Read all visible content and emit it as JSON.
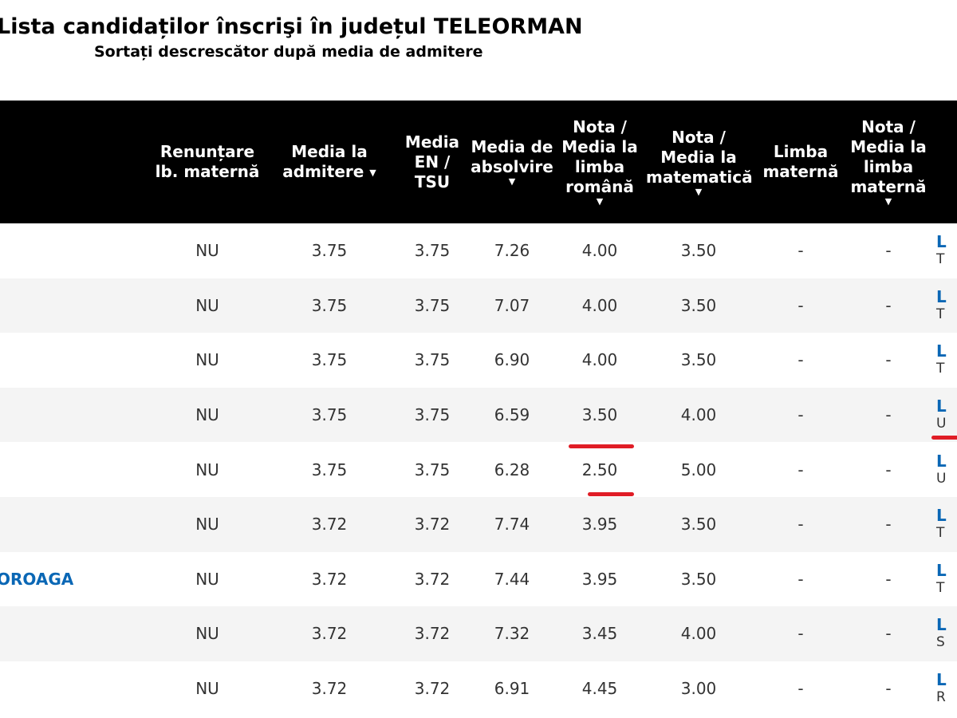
{
  "page": {
    "title": "Lista candidaților înscrişi în județul TELEORMAN",
    "subtitle": "Sortați descrescător după media de admitere"
  },
  "table": {
    "headers": {
      "renuntare": "Renunțare lb. maternă",
      "media_admitere": "Media la admitere",
      "media_en": "Media EN / TSU",
      "media_absolvire": "Media de absolvire",
      "nota_romana": "Nota / Media la limba română",
      "nota_matematica": "Nota / Media la matematică",
      "limba_materna": "Limba maternă",
      "nota_limba_materna": "Nota / Media la limba maternă",
      "sort_arrow": "▼"
    },
    "rows": [
      {
        "name": "",
        "renuntare": "NU",
        "media_admitere": "3.75",
        "media_en": "3.75",
        "media_absolvire": "7.26",
        "nota_romana": "4.00",
        "nota_matematica": "3.50",
        "limba_materna": "-",
        "nota_limba_materna": "-",
        "school_initial": "L",
        "school_loc": "T"
      },
      {
        "name": "",
        "renuntare": "NU",
        "media_admitere": "3.75",
        "media_en": "3.75",
        "media_absolvire": "7.07",
        "nota_romana": "4.00",
        "nota_matematica": "3.50",
        "limba_materna": "-",
        "nota_limba_materna": "-",
        "school_initial": "L",
        "school_loc": "T"
      },
      {
        "name": "",
        "renuntare": "NU",
        "media_admitere": "3.75",
        "media_en": "3.75",
        "media_absolvire": "6.90",
        "nota_romana": "4.00",
        "nota_matematica": "3.50",
        "limba_materna": "-",
        "nota_limba_materna": "-",
        "school_initial": "L",
        "school_loc": "T"
      },
      {
        "name": "",
        "renuntare": "NU",
        "media_admitere": "3.75",
        "media_en": "3.75",
        "media_absolvire": "6.59",
        "nota_romana": "3.50",
        "nota_matematica": "4.00",
        "limba_materna": "-",
        "nota_limba_materna": "-",
        "school_initial": "L",
        "school_loc": "U"
      },
      {
        "name": "",
        "renuntare": "NU",
        "media_admitere": "3.75",
        "media_en": "3.75",
        "media_absolvire": "6.28",
        "nota_romana": "2.50",
        "nota_matematica": "5.00",
        "limba_materna": "-",
        "nota_limba_materna": "-",
        "school_initial": "L",
        "school_loc": "U"
      },
      {
        "name": "",
        "renuntare": "NU",
        "media_admitere": "3.72",
        "media_en": "3.72",
        "media_absolvire": "7.74",
        "nota_romana": "3.95",
        "nota_matematica": "3.50",
        "limba_materna": "-",
        "nota_limba_materna": "-",
        "school_initial": "L",
        "school_loc": "T"
      },
      {
        "name": "OROAGA",
        "renuntare": "NU",
        "media_admitere": "3.72",
        "media_en": "3.72",
        "media_absolvire": "7.44",
        "nota_romana": "3.95",
        "nota_matematica": "3.50",
        "limba_materna": "-",
        "nota_limba_materna": "-",
        "school_initial": "L",
        "school_loc": "T"
      },
      {
        "name": "",
        "renuntare": "NU",
        "media_admitere": "3.72",
        "media_en": "3.72",
        "media_absolvire": "7.32",
        "nota_romana": "3.45",
        "nota_matematica": "4.00",
        "limba_materna": "-",
        "nota_limba_materna": "-",
        "school_initial": "L",
        "school_loc": "S"
      },
      {
        "name": "",
        "renuntare": "NU",
        "media_admitere": "3.72",
        "media_en": "3.72",
        "media_absolvire": "6.91",
        "nota_romana": "4.45",
        "nota_matematica": "3.00",
        "limba_materna": "-",
        "nota_limba_materna": "-",
        "school_initial": "L",
        "school_loc": "R"
      }
    ]
  },
  "colors": {
    "header_bg": "#000000",
    "link": "#0a67b5",
    "annotation": "#e01d26"
  }
}
